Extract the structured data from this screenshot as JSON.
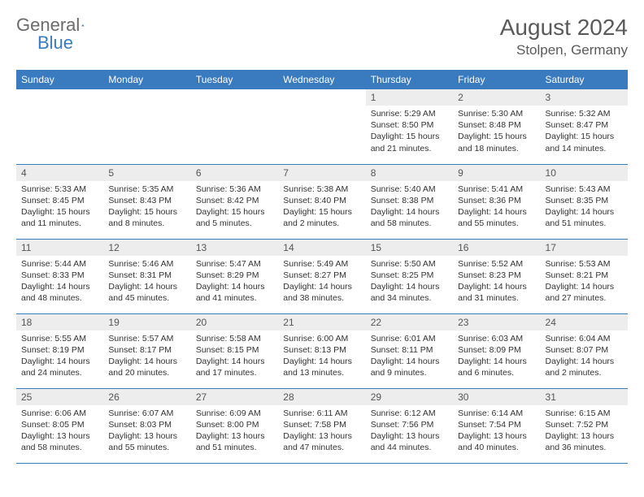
{
  "logo": {
    "text1": "General",
    "text2": "Blue"
  },
  "title": "August 2024",
  "location": "Stolpen, Germany",
  "colors": {
    "header_bg": "#3a7bbf",
    "header_text": "#ffffff",
    "daynum_bg": "#ededed",
    "border": "#3a7bbf",
    "body_text": "#333333",
    "title_text": "#5a5a5a"
  },
  "weekdays": [
    "Sunday",
    "Monday",
    "Tuesday",
    "Wednesday",
    "Thursday",
    "Friday",
    "Saturday"
  ],
  "weeks": [
    [
      null,
      null,
      null,
      null,
      {
        "n": "1",
        "sr": "5:29 AM",
        "ss": "8:50 PM",
        "dl": "15 hours and 21 minutes."
      },
      {
        "n": "2",
        "sr": "5:30 AM",
        "ss": "8:48 PM",
        "dl": "15 hours and 18 minutes."
      },
      {
        "n": "3",
        "sr": "5:32 AM",
        "ss": "8:47 PM",
        "dl": "15 hours and 14 minutes."
      }
    ],
    [
      {
        "n": "4",
        "sr": "5:33 AM",
        "ss": "8:45 PM",
        "dl": "15 hours and 11 minutes."
      },
      {
        "n": "5",
        "sr": "5:35 AM",
        "ss": "8:43 PM",
        "dl": "15 hours and 8 minutes."
      },
      {
        "n": "6",
        "sr": "5:36 AM",
        "ss": "8:42 PM",
        "dl": "15 hours and 5 minutes."
      },
      {
        "n": "7",
        "sr": "5:38 AM",
        "ss": "8:40 PM",
        "dl": "15 hours and 2 minutes."
      },
      {
        "n": "8",
        "sr": "5:40 AM",
        "ss": "8:38 PM",
        "dl": "14 hours and 58 minutes."
      },
      {
        "n": "9",
        "sr": "5:41 AM",
        "ss": "8:36 PM",
        "dl": "14 hours and 55 minutes."
      },
      {
        "n": "10",
        "sr": "5:43 AM",
        "ss": "8:35 PM",
        "dl": "14 hours and 51 minutes."
      }
    ],
    [
      {
        "n": "11",
        "sr": "5:44 AM",
        "ss": "8:33 PM",
        "dl": "14 hours and 48 minutes."
      },
      {
        "n": "12",
        "sr": "5:46 AM",
        "ss": "8:31 PM",
        "dl": "14 hours and 45 minutes."
      },
      {
        "n": "13",
        "sr": "5:47 AM",
        "ss": "8:29 PM",
        "dl": "14 hours and 41 minutes."
      },
      {
        "n": "14",
        "sr": "5:49 AM",
        "ss": "8:27 PM",
        "dl": "14 hours and 38 minutes."
      },
      {
        "n": "15",
        "sr": "5:50 AM",
        "ss": "8:25 PM",
        "dl": "14 hours and 34 minutes."
      },
      {
        "n": "16",
        "sr": "5:52 AM",
        "ss": "8:23 PM",
        "dl": "14 hours and 31 minutes."
      },
      {
        "n": "17",
        "sr": "5:53 AM",
        "ss": "8:21 PM",
        "dl": "14 hours and 27 minutes."
      }
    ],
    [
      {
        "n": "18",
        "sr": "5:55 AM",
        "ss": "8:19 PM",
        "dl": "14 hours and 24 minutes."
      },
      {
        "n": "19",
        "sr": "5:57 AM",
        "ss": "8:17 PM",
        "dl": "14 hours and 20 minutes."
      },
      {
        "n": "20",
        "sr": "5:58 AM",
        "ss": "8:15 PM",
        "dl": "14 hours and 17 minutes."
      },
      {
        "n": "21",
        "sr": "6:00 AM",
        "ss": "8:13 PM",
        "dl": "14 hours and 13 minutes."
      },
      {
        "n": "22",
        "sr": "6:01 AM",
        "ss": "8:11 PM",
        "dl": "14 hours and 9 minutes."
      },
      {
        "n": "23",
        "sr": "6:03 AM",
        "ss": "8:09 PM",
        "dl": "14 hours and 6 minutes."
      },
      {
        "n": "24",
        "sr": "6:04 AM",
        "ss": "8:07 PM",
        "dl": "14 hours and 2 minutes."
      }
    ],
    [
      {
        "n": "25",
        "sr": "6:06 AM",
        "ss": "8:05 PM",
        "dl": "13 hours and 58 minutes."
      },
      {
        "n": "26",
        "sr": "6:07 AM",
        "ss": "8:03 PM",
        "dl": "13 hours and 55 minutes."
      },
      {
        "n": "27",
        "sr": "6:09 AM",
        "ss": "8:00 PM",
        "dl": "13 hours and 51 minutes."
      },
      {
        "n": "28",
        "sr": "6:11 AM",
        "ss": "7:58 PM",
        "dl": "13 hours and 47 minutes."
      },
      {
        "n": "29",
        "sr": "6:12 AM",
        "ss": "7:56 PM",
        "dl": "13 hours and 44 minutes."
      },
      {
        "n": "30",
        "sr": "6:14 AM",
        "ss": "7:54 PM",
        "dl": "13 hours and 40 minutes."
      },
      {
        "n": "31",
        "sr": "6:15 AM",
        "ss": "7:52 PM",
        "dl": "13 hours and 36 minutes."
      }
    ]
  ],
  "labels": {
    "sunrise": "Sunrise:",
    "sunset": "Sunset:",
    "daylight": "Daylight:"
  }
}
